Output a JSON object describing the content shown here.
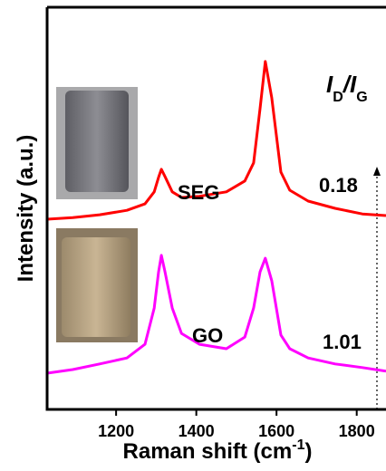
{
  "chart_data": {
    "type": "line",
    "xlabel": [
      "Raman shift (cm",
      "-1",
      ")"
    ],
    "ylabel": "Intensity (a.u.)",
    "ratio_header": [
      {
        "text": "I"
      },
      {
        "text": "D",
        "sub": true
      },
      {
        "text": "/"
      },
      {
        "text": "I"
      },
      {
        "text": "G",
        "sub": true
      }
    ],
    "x": [
      1028,
      1092,
      1159,
      1227,
      1272,
      1295,
      1306,
      1313,
      1322,
      1340,
      1363,
      1408,
      1475,
      1521,
      1543,
      1559,
      1572,
      1588,
      1611,
      1633,
      1679,
      1746,
      1814,
      1873
    ],
    "series": [
      {
        "name": "SEG",
        "color": "#ff0000",
        "ratio": "0.18",
        "values": [
          47.3,
          47.7,
          48.4,
          49.5,
          51.1,
          54.1,
          57.7,
          59.7,
          57.9,
          54.1,
          52.7,
          53.0,
          54.1,
          56.8,
          61.3,
          74.8,
          86.5,
          77.5,
          59.0,
          54.5,
          51.8,
          50.0,
          48.6,
          48.2
        ]
      },
      {
        "name": "GO",
        "color": "#ff00ff",
        "ratio": "1.01",
        "values": [
          9.0,
          9.9,
          11.3,
          12.8,
          16.2,
          25.2,
          34.2,
          38.3,
          34.2,
          25.2,
          18.9,
          16.2,
          15.1,
          18.0,
          25.2,
          34.2,
          37.6,
          32.0,
          18.5,
          15.1,
          12.8,
          11.3,
          10.4,
          9.5
        ]
      }
    ],
    "xlim": [
      1028,
      1873
    ],
    "xticks": [
      1200,
      1400,
      1600,
      1800
    ],
    "ylim": [
      0,
      100
    ]
  }
}
